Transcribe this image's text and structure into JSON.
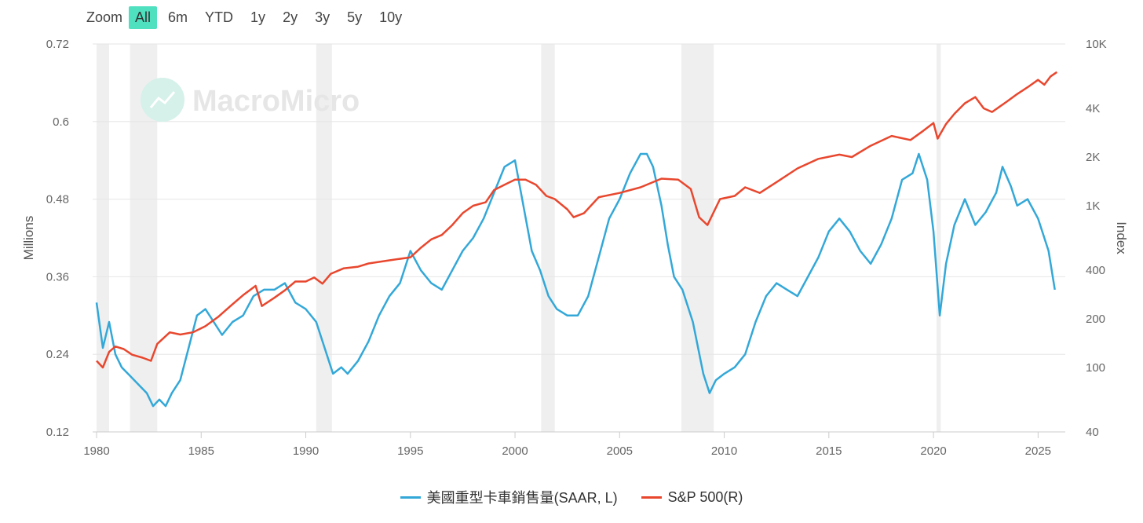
{
  "toolbar": {
    "zoom_label": "Zoom",
    "buttons": [
      "All",
      "6m",
      "YTD",
      "1y",
      "2y",
      "3y",
      "5y",
      "10y"
    ],
    "active": "All"
  },
  "watermark": "MacroMicro",
  "colors": {
    "series1": "#33a8d8",
    "series2": "#e8472e",
    "recession": "#efefef",
    "grid": "#e6e6e6"
  },
  "chart_data": {
    "type": "line",
    "title": "",
    "xlabel": "",
    "ylabel": "Millions",
    "ylabel_right": "Index",
    "xlim": [
      1980,
      2026
    ],
    "ylim": [
      0.12,
      0.72
    ],
    "ylim_right": [
      40,
      10000
    ],
    "right_scale": "log",
    "x_ticks": [
      "1980",
      "1985",
      "1990",
      "1995",
      "2000",
      "2005",
      "2010",
      "2015",
      "2020",
      "2025"
    ],
    "y_ticks": [
      "0.72",
      "0.6",
      "0.48",
      "0.36",
      "0.24",
      "0.12"
    ],
    "y_ticks_right": [
      "10K",
      "4K",
      "2K",
      "1K",
      "400",
      "200",
      "100",
      "40"
    ],
    "recessions": [
      [
        1980.0,
        1980.6
      ],
      [
        1981.6,
        1982.9
      ],
      [
        1990.5,
        1991.25
      ],
      [
        2001.25,
        2001.9
      ],
      [
        2007.95,
        2009.5
      ],
      [
        2020.15,
        2020.35
      ]
    ],
    "series": [
      {
        "name": "美國重型卡車銷售量(SAAR, L)",
        "axis": "left",
        "x": [
          1980.0,
          1980.3,
          1980.6,
          1980.9,
          1981.2,
          1981.5,
          1981.8,
          1982.1,
          1982.4,
          1982.7,
          1983.0,
          1983.3,
          1983.6,
          1984.0,
          1984.4,
          1984.8,
          1985.2,
          1985.6,
          1986.0,
          1986.5,
          1987.0,
          1987.5,
          1988.0,
          1988.5,
          1989.0,
          1989.5,
          1990.0,
          1990.5,
          1991.0,
          1991.3,
          1991.7,
          1992.0,
          1992.5,
          1993.0,
          1993.5,
          1994.0,
          1994.5,
          1995.0,
          1995.5,
          1996.0,
          1996.5,
          1997.0,
          1997.5,
          1998.0,
          1998.5,
          1999.0,
          1999.5,
          2000.0,
          2000.4,
          2000.8,
          2001.2,
          2001.6,
          2002.0,
          2002.5,
          2003.0,
          2003.5,
          2004.0,
          2004.5,
          2005.0,
          2005.5,
          2006.0,
          2006.3,
          2006.6,
          2007.0,
          2007.3,
          2007.6,
          2008.0,
          2008.5,
          2009.0,
          2009.3,
          2009.6,
          2010.0,
          2010.5,
          2011.0,
          2011.5,
          2012.0,
          2012.5,
          2013.0,
          2013.5,
          2014.0,
          2014.5,
          2015.0,
          2015.5,
          2016.0,
          2016.5,
          2017.0,
          2017.5,
          2018.0,
          2018.5,
          2019.0,
          2019.3,
          2019.7,
          2020.0,
          2020.3,
          2020.6,
          2021.0,
          2021.5,
          2022.0,
          2022.5,
          2023.0,
          2023.3,
          2023.7,
          2024.0,
          2024.5,
          2025.0,
          2025.5,
          2025.8
        ],
        "values": [
          0.32,
          0.25,
          0.29,
          0.24,
          0.22,
          0.21,
          0.2,
          0.19,
          0.18,
          0.16,
          0.17,
          0.16,
          0.18,
          0.2,
          0.25,
          0.3,
          0.31,
          0.29,
          0.27,
          0.29,
          0.3,
          0.33,
          0.34,
          0.34,
          0.35,
          0.32,
          0.31,
          0.29,
          0.24,
          0.21,
          0.22,
          0.21,
          0.23,
          0.26,
          0.3,
          0.33,
          0.35,
          0.4,
          0.37,
          0.35,
          0.34,
          0.37,
          0.4,
          0.42,
          0.45,
          0.49,
          0.53,
          0.54,
          0.47,
          0.4,
          0.37,
          0.33,
          0.31,
          0.3,
          0.3,
          0.33,
          0.39,
          0.45,
          0.48,
          0.52,
          0.55,
          0.55,
          0.53,
          0.47,
          0.41,
          0.36,
          0.34,
          0.29,
          0.21,
          0.18,
          0.2,
          0.21,
          0.22,
          0.24,
          0.29,
          0.33,
          0.35,
          0.34,
          0.33,
          0.36,
          0.39,
          0.43,
          0.45,
          0.43,
          0.4,
          0.38,
          0.41,
          0.45,
          0.51,
          0.52,
          0.55,
          0.51,
          0.43,
          0.3,
          0.38,
          0.44,
          0.48,
          0.44,
          0.46,
          0.49,
          0.53,
          0.5,
          0.47,
          0.48,
          0.45,
          0.4,
          0.34
        ]
      },
      {
        "name": "S&P 500(R)",
        "axis": "right",
        "x": [
          1980.0,
          1980.3,
          1980.6,
          1980.9,
          1981.3,
          1981.7,
          1982.2,
          1982.6,
          1982.9,
          1983.5,
          1984.0,
          1984.6,
          1985.2,
          1985.8,
          1986.4,
          1987.0,
          1987.6,
          1987.9,
          1988.5,
          1989.0,
          1989.5,
          1990.0,
          1990.4,
          1990.8,
          1991.2,
          1991.8,
          1992.5,
          1993.0,
          1994.0,
          1995.0,
          1995.5,
          1996.0,
          1996.5,
          1997.0,
          1997.5,
          1998.0,
          1998.6,
          1999.0,
          1999.5,
          2000.0,
          2000.5,
          2001.0,
          2001.5,
          2001.9,
          2002.5,
          2002.8,
          2003.3,
          2004.0,
          2005.0,
          2006.0,
          2007.0,
          2007.8,
          2008.4,
          2008.8,
          2009.2,
          2009.8,
          2010.5,
          2011.0,
          2011.7,
          2012.5,
          2013.5,
          2014.5,
          2015.5,
          2016.1,
          2017.0,
          2018.0,
          2018.9,
          2019.5,
          2020.0,
          2020.2,
          2020.6,
          2021.0,
          2021.5,
          2022.0,
          2022.4,
          2022.8,
          2023.5,
          2024.0,
          2024.5,
          2025.0,
          2025.3,
          2025.6,
          2025.9
        ],
        "values": [
          110,
          100,
          125,
          135,
          130,
          120,
          115,
          110,
          140,
          165,
          160,
          165,
          180,
          205,
          240,
          280,
          320,
          240,
          270,
          300,
          340,
          340,
          360,
          330,
          380,
          410,
          420,
          440,
          460,
          480,
          550,
          620,
          660,
          760,
          900,
          1000,
          1050,
          1250,
          1350,
          1450,
          1450,
          1350,
          1150,
          1100,
          950,
          850,
          900,
          1130,
          1200,
          1300,
          1470,
          1450,
          1270,
          850,
          760,
          1100,
          1150,
          1300,
          1200,
          1400,
          1700,
          1950,
          2070,
          2000,
          2350,
          2700,
          2550,
          2900,
          3250,
          2600,
          3200,
          3700,
          4300,
          4700,
          4000,
          3800,
          4400,
          4900,
          5400,
          6000,
          5600,
          6300,
          6700
        ]
      }
    ]
  },
  "legend": {
    "items": [
      "美國重型卡車銷售量(SAAR, L)",
      "S&P 500(R)"
    ]
  }
}
